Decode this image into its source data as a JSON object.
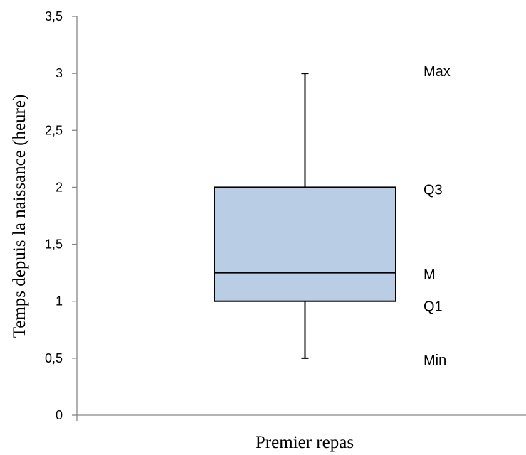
{
  "chart_data": {
    "type": "box",
    "title": "",
    "xlabel": "Premier repas",
    "ylabel": "Temps depuis la naissance (heure)",
    "ylim": [
      0,
      3.5
    ],
    "yticks": [
      {
        "value": 0,
        "label": "0"
      },
      {
        "value": 0.5,
        "label": "0,5"
      },
      {
        "value": 1,
        "label": "1"
      },
      {
        "value": 1.5,
        "label": "1,5"
      },
      {
        "value": 2,
        "label": "2"
      },
      {
        "value": 2.5,
        "label": "2,5"
      },
      {
        "value": 3,
        "label": "3"
      },
      {
        "value": 3.5,
        "label": "3,5"
      }
    ],
    "box": {
      "min": 0.5,
      "q1": 1,
      "median": 1.25,
      "q3": 2,
      "max": 3
    },
    "annotations": [
      {
        "text": "Max",
        "value": 3
      },
      {
        "text": "Q3",
        "value": 2
      },
      {
        "text": "M",
        "value": 1.25
      },
      {
        "text": "Q1",
        "value": 1
      },
      {
        "text": "Min",
        "value": 0.5
      }
    ],
    "box_color": "#b9cde5",
    "stroke_color": "#000000",
    "grid": false,
    "legend": "none"
  }
}
